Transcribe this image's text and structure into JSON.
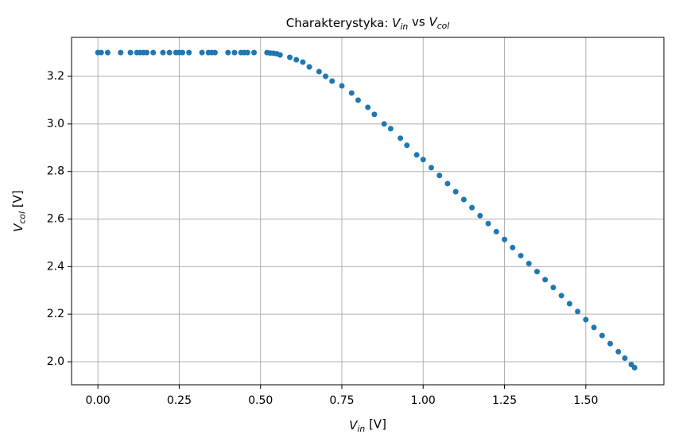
{
  "chart_data": {
    "type": "scatter",
    "title": [
      {
        "text": "Charakterystyka: "
      },
      {
        "text": "V",
        "style": "italic"
      },
      {
        "text": "in",
        "style": "sub"
      },
      {
        "text": " vs "
      },
      {
        "text": "V",
        "style": "italic"
      },
      {
        "text": "col",
        "style": "sub"
      }
    ],
    "xlabel": [
      {
        "text": "V",
        "style": "italic"
      },
      {
        "text": "in",
        "style": "sub"
      },
      {
        "text": " [V]"
      }
    ],
    "ylabel": [
      {
        "text": "V",
        "style": "italic"
      },
      {
        "text": "col",
        "style": "sub"
      },
      {
        "text": " [V]"
      }
    ],
    "color": "#1f77b4",
    "grid": true,
    "xlim": [
      -0.081,
      1.74
    ],
    "ylim": [
      1.903,
      3.364
    ],
    "xticks": [
      {
        "value": 0,
        "label": "0.00"
      },
      {
        "value": 0.25,
        "label": "0.25"
      },
      {
        "value": 0.5,
        "label": "0.50"
      },
      {
        "value": 0.75,
        "label": "0.75"
      },
      {
        "value": 1,
        "label": "1.00"
      },
      {
        "value": 1.25,
        "label": "1.25"
      },
      {
        "value": 1.5,
        "label": "1.50"
      }
    ],
    "yticks": [
      {
        "value": 2,
        "label": "2.0"
      },
      2.2,
      2.4,
      2.6,
      2.8,
      {
        "value": 3,
        "label": "3.0"
      },
      3.2
    ],
    "x": [
      0,
      0.01,
      0.03,
      0.07,
      0.1,
      0.12,
      0.13,
      0.14,
      0.15,
      0.17,
      0.2,
      0.22,
      0.24,
      0.25,
      0.26,
      0.28,
      0.32,
      0.34,
      0.35,
      0.36,
      0.4,
      0.42,
      0.44,
      0.45,
      0.46,
      0.48,
      0.52,
      0.53,
      0.54,
      0.55,
      0.56,
      0.59,
      0.61,
      0.63,
      0.65,
      0.68,
      0.7,
      0.72,
      0.75,
      0.78,
      0.8,
      0.83,
      0.85,
      0.88,
      0.9,
      0.93,
      0.95,
      0.98,
      1.0,
      1.025,
      1.05,
      1.075,
      1.1,
      1.125,
      1.15,
      1.175,
      1.2,
      1.225,
      1.25,
      1.275,
      1.3,
      1.325,
      1.35,
      1.375,
      1.4,
      1.425,
      1.45,
      1.475,
      1.5,
      1.525,
      1.55,
      1.575,
      1.6,
      1.62,
      1.64,
      1.65
    ],
    "values": [
      3.3,
      3.3,
      3.3,
      3.3,
      3.3,
      3.3,
      3.3,
      3.3,
      3.3,
      3.3,
      3.3,
      3.3,
      3.3,
      3.3,
      3.3,
      3.3,
      3.3,
      3.3,
      3.3,
      3.3,
      3.3,
      3.3,
      3.3,
      3.3,
      3.3,
      3.3,
      3.3,
      3.298,
      3.297,
      3.295,
      3.29,
      3.28,
      3.27,
      3.26,
      3.24,
      3.22,
      3.2,
      3.18,
      3.16,
      3.13,
      3.1,
      3.07,
      3.04,
      3.0,
      2.98,
      2.94,
      2.91,
      2.87,
      2.85,
      2.816,
      2.783,
      2.749,
      2.715,
      2.682,
      2.648,
      2.614,
      2.581,
      2.547,
      2.514,
      2.48,
      2.446,
      2.413,
      2.379,
      2.345,
      2.312,
      2.278,
      2.244,
      2.211,
      2.177,
      2.144,
      2.11,
      2.076,
      2.042,
      2.015,
      1.988,
      1.975
    ]
  }
}
